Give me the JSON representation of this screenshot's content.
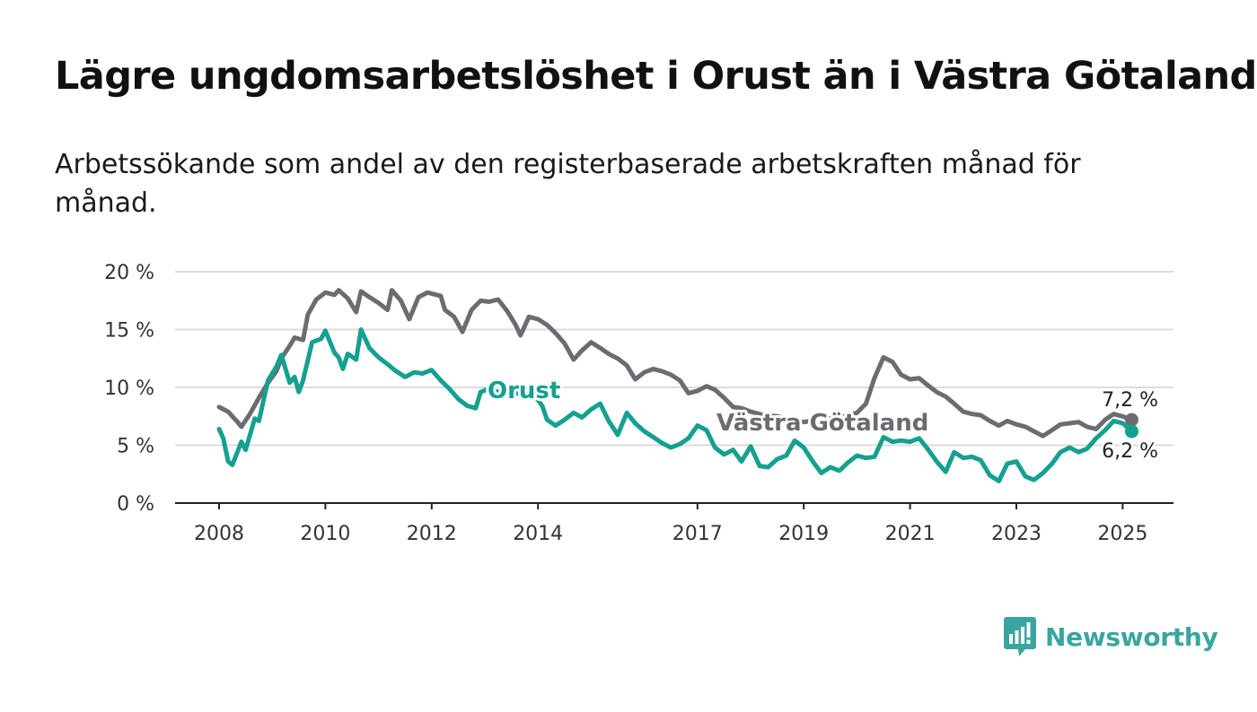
{
  "title": "Lägre ungdomsarbetslöshet i Orust än i Västra Götaland",
  "subtitle": "Arbetssökande som andel av den registerbaserade arbetskraften månad för månad.",
  "brand": {
    "name": "Newsworthy",
    "color": "#3aa5a0",
    "icon": "newsworthy-logo-icon"
  },
  "chart_data": {
    "type": "line",
    "title": "Lägre ungdomsarbetslöshet i Orust än i Västra Götaland",
    "subtitle": "Arbetssökande som andel av den registerbaserade arbetskraften månad för månad.",
    "xlabel": "",
    "ylabel": "",
    "xlim": [
      2007.9,
      2025.2
    ],
    "ylim": [
      0,
      20
    ],
    "x_ticks": [
      "2008",
      "2010",
      "2012",
      "2014",
      "2017",
      "2019",
      "2021",
      "2023",
      "2025"
    ],
    "y_ticks": [
      "0 %",
      "5 %",
      "10 %",
      "15 %",
      "20 %"
    ],
    "grid": true,
    "legend": "direct-labels",
    "series": [
      {
        "name": "Västra Götaland",
        "color": "#6b6b71",
        "end_label": "7,2 %",
        "points": [
          [
            2008.0,
            8.3
          ],
          [
            2008.17,
            7.9
          ],
          [
            2008.33,
            7.1
          ],
          [
            2008.42,
            6.6
          ],
          [
            2008.58,
            7.7
          ],
          [
            2008.75,
            9.1
          ],
          [
            2008.92,
            10.4
          ],
          [
            2009.08,
            11.4
          ],
          [
            2009.17,
            12.5
          ],
          [
            2009.33,
            13.6
          ],
          [
            2009.42,
            14.3
          ],
          [
            2009.58,
            14.1
          ],
          [
            2009.67,
            16.3
          ],
          [
            2009.83,
            17.6
          ],
          [
            2010.0,
            18.2
          ],
          [
            2010.17,
            18.0
          ],
          [
            2010.25,
            18.4
          ],
          [
            2010.42,
            17.7
          ],
          [
            2010.58,
            16.5
          ],
          [
            2010.67,
            18.3
          ],
          [
            2010.83,
            17.8
          ],
          [
            2011.0,
            17.3
          ],
          [
            2011.17,
            16.7
          ],
          [
            2011.25,
            18.4
          ],
          [
            2011.42,
            17.5
          ],
          [
            2011.58,
            15.9
          ],
          [
            2011.75,
            17.8
          ],
          [
            2011.92,
            18.2
          ],
          [
            2012.17,
            17.9
          ],
          [
            2012.25,
            16.7
          ],
          [
            2012.42,
            16.1
          ],
          [
            2012.58,
            14.8
          ],
          [
            2012.75,
            16.7
          ],
          [
            2012.92,
            17.5
          ],
          [
            2013.08,
            17.4
          ],
          [
            2013.25,
            17.6
          ],
          [
            2013.42,
            16.6
          ],
          [
            2013.58,
            15.4
          ],
          [
            2013.67,
            14.5
          ],
          [
            2013.83,
            16.1
          ],
          [
            2014.0,
            15.9
          ],
          [
            2014.17,
            15.4
          ],
          [
            2014.33,
            14.7
          ],
          [
            2014.5,
            13.8
          ],
          [
            2014.67,
            12.4
          ],
          [
            2014.83,
            13.2
          ],
          [
            2015.0,
            13.9
          ],
          [
            2015.17,
            13.4
          ],
          [
            2015.33,
            12.9
          ],
          [
            2015.5,
            12.5
          ],
          [
            2015.67,
            11.9
          ],
          [
            2015.83,
            10.7
          ],
          [
            2016.0,
            11.3
          ],
          [
            2016.17,
            11.6
          ],
          [
            2016.33,
            11.4
          ],
          [
            2016.5,
            11.1
          ],
          [
            2016.67,
            10.6
          ],
          [
            2016.83,
            9.5
          ],
          [
            2017.0,
            9.7
          ],
          [
            2017.17,
            10.1
          ],
          [
            2017.33,
            9.8
          ],
          [
            2017.5,
            9.1
          ],
          [
            2017.67,
            8.3
          ],
          [
            2017.83,
            8.2
          ],
          [
            2018.0,
            7.9
          ],
          [
            2018.25,
            7.6
          ],
          [
            2018.5,
            7.5
          ],
          [
            2018.75,
            7.2
          ],
          [
            2019.0,
            7.0
          ],
          [
            2019.25,
            7.2
          ],
          [
            2019.5,
            7.3
          ],
          [
            2019.75,
            7.5
          ],
          [
            2020.0,
            7.8
          ],
          [
            2020.17,
            8.6
          ],
          [
            2020.33,
            10.8
          ],
          [
            2020.5,
            12.6
          ],
          [
            2020.67,
            12.2
          ],
          [
            2020.83,
            11.1
          ],
          [
            2021.0,
            10.7
          ],
          [
            2021.17,
            10.8
          ],
          [
            2021.33,
            10.2
          ],
          [
            2021.5,
            9.6
          ],
          [
            2021.67,
            9.2
          ],
          [
            2021.83,
            8.6
          ],
          [
            2022.0,
            7.9
          ],
          [
            2022.17,
            7.7
          ],
          [
            2022.33,
            7.6
          ],
          [
            2022.5,
            7.1
          ],
          [
            2022.67,
            6.7
          ],
          [
            2022.83,
            7.1
          ],
          [
            2023.0,
            6.8
          ],
          [
            2023.17,
            6.6
          ],
          [
            2023.33,
            6.2
          ],
          [
            2023.5,
            5.8
          ],
          [
            2023.67,
            6.3
          ],
          [
            2023.83,
            6.8
          ],
          [
            2024.0,
            6.9
          ],
          [
            2024.17,
            7.0
          ],
          [
            2024.33,
            6.6
          ],
          [
            2024.5,
            6.4
          ],
          [
            2024.67,
            7.2
          ],
          [
            2024.83,
            7.7
          ],
          [
            2025.0,
            7.5
          ],
          [
            2025.17,
            7.2
          ]
        ]
      },
      {
        "name": "Orust",
        "color": "#15a090",
        "end_label": "6,2 %",
        "points": [
          [
            2008.0,
            6.4
          ],
          [
            2008.08,
            5.6
          ],
          [
            2008.17,
            3.6
          ],
          [
            2008.25,
            3.3
          ],
          [
            2008.42,
            5.3
          ],
          [
            2008.5,
            4.6
          ],
          [
            2008.67,
            7.3
          ],
          [
            2008.75,
            7.1
          ],
          [
            2008.92,
            10.6
          ],
          [
            2009.08,
            11.8
          ],
          [
            2009.17,
            12.8
          ],
          [
            2009.33,
            10.4
          ],
          [
            2009.42,
            10.9
          ],
          [
            2009.5,
            9.6
          ],
          [
            2009.58,
            10.6
          ],
          [
            2009.75,
            13.9
          ],
          [
            2009.92,
            14.2
          ],
          [
            2010.0,
            14.9
          ],
          [
            2010.17,
            13.0
          ],
          [
            2010.25,
            12.6
          ],
          [
            2010.33,
            11.6
          ],
          [
            2010.42,
            12.9
          ],
          [
            2010.58,
            12.4
          ],
          [
            2010.67,
            15.0
          ],
          [
            2010.83,
            13.4
          ],
          [
            2011.0,
            12.6
          ],
          [
            2011.17,
            12.0
          ],
          [
            2011.33,
            11.4
          ],
          [
            2011.5,
            10.9
          ],
          [
            2011.67,
            11.3
          ],
          [
            2011.83,
            11.2
          ],
          [
            2012.0,
            11.5
          ],
          [
            2012.17,
            10.6
          ],
          [
            2012.33,
            9.9
          ],
          [
            2012.5,
            9.0
          ],
          [
            2012.67,
            8.4
          ],
          [
            2012.83,
            8.2
          ],
          [
            2012.92,
            9.6
          ],
          [
            2013.08,
            9.9
          ],
          [
            2013.25,
            9.6
          ],
          [
            2013.42,
            9.9
          ],
          [
            2013.58,
            9.6
          ],
          [
            2013.75,
            9.1
          ],
          [
            2013.92,
            9.4
          ],
          [
            2014.08,
            8.4
          ],
          [
            2014.17,
            7.2
          ],
          [
            2014.33,
            6.7
          ],
          [
            2014.5,
            7.2
          ],
          [
            2014.67,
            7.8
          ],
          [
            2014.83,
            7.4
          ],
          [
            2015.0,
            8.1
          ],
          [
            2015.17,
            8.6
          ],
          [
            2015.33,
            7.1
          ],
          [
            2015.5,
            5.9
          ],
          [
            2015.67,
            7.8
          ],
          [
            2015.83,
            6.9
          ],
          [
            2016.0,
            6.2
          ],
          [
            2016.17,
            5.7
          ],
          [
            2016.33,
            5.2
          ],
          [
            2016.5,
            4.8
          ],
          [
            2016.67,
            5.1
          ],
          [
            2016.83,
            5.6
          ],
          [
            2017.0,
            6.7
          ],
          [
            2017.17,
            6.3
          ],
          [
            2017.33,
            4.8
          ],
          [
            2017.5,
            4.2
          ],
          [
            2017.67,
            4.6
          ],
          [
            2017.83,
            3.6
          ],
          [
            2018.0,
            4.9
          ],
          [
            2018.17,
            3.2
          ],
          [
            2018.33,
            3.1
          ],
          [
            2018.5,
            3.8
          ],
          [
            2018.67,
            4.1
          ],
          [
            2018.83,
            5.4
          ],
          [
            2019.0,
            4.8
          ],
          [
            2019.17,
            3.6
          ],
          [
            2019.33,
            2.6
          ],
          [
            2019.5,
            3.1
          ],
          [
            2019.67,
            2.8
          ],
          [
            2019.83,
            3.5
          ],
          [
            2020.0,
            4.1
          ],
          [
            2020.17,
            3.9
          ],
          [
            2020.33,
            4.0
          ],
          [
            2020.5,
            5.7
          ],
          [
            2020.67,
            5.3
          ],
          [
            2020.83,
            5.4
          ],
          [
            2021.0,
            5.3
          ],
          [
            2021.17,
            5.6
          ],
          [
            2021.33,
            4.7
          ],
          [
            2021.5,
            3.6
          ],
          [
            2021.67,
            2.7
          ],
          [
            2021.83,
            4.4
          ],
          [
            2022.0,
            3.9
          ],
          [
            2022.17,
            4.0
          ],
          [
            2022.33,
            3.7
          ],
          [
            2022.5,
            2.4
          ],
          [
            2022.67,
            1.9
          ],
          [
            2022.83,
            3.4
          ],
          [
            2023.0,
            3.6
          ],
          [
            2023.17,
            2.3
          ],
          [
            2023.33,
            2.0
          ],
          [
            2023.5,
            2.6
          ],
          [
            2023.67,
            3.4
          ],
          [
            2023.83,
            4.4
          ],
          [
            2024.0,
            4.8
          ],
          [
            2024.17,
            4.4
          ],
          [
            2024.33,
            4.7
          ],
          [
            2024.5,
            5.6
          ],
          [
            2024.67,
            6.3
          ],
          [
            2024.83,
            7.1
          ],
          [
            2025.0,
            6.9
          ],
          [
            2025.17,
            6.2
          ]
        ]
      }
    ]
  }
}
